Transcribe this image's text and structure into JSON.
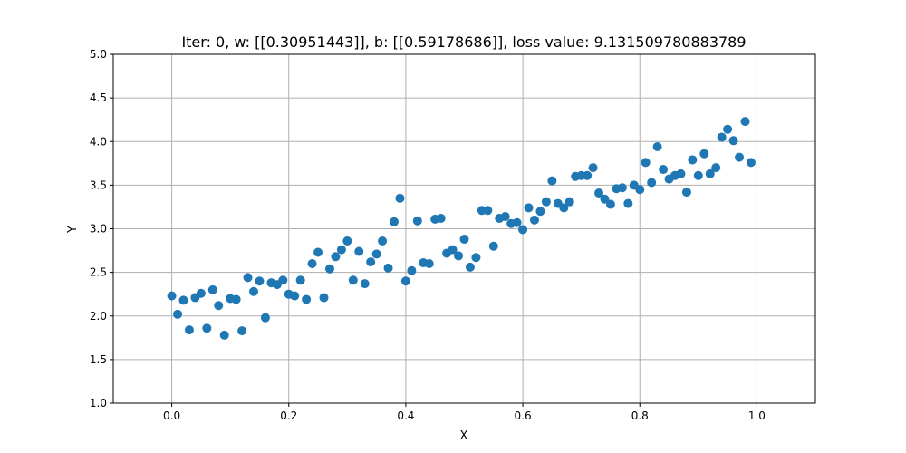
{
  "chart_data": {
    "type": "scatter",
    "title": "Iter: 0, w: [[0.30951443]], b: [[0.59178686]], loss value: 9.131509780883789",
    "xlabel": "X",
    "ylabel": "Y",
    "xlim": [
      -0.1,
      1.1
    ],
    "ylim": [
      1.0,
      5.0
    ],
    "xticks": [
      0.0,
      0.2,
      0.4,
      0.6,
      0.8,
      1.0
    ],
    "xtick_labels": [
      "0.0",
      "0.2",
      "0.4",
      "0.6",
      "0.8",
      "1.0"
    ],
    "yticks": [
      1.0,
      1.5,
      2.0,
      2.5,
      3.0,
      3.5,
      4.0,
      4.5,
      5.0
    ],
    "ytick_labels": [
      "1.0",
      "1.5",
      "2.0",
      "2.5",
      "3.0",
      "3.5",
      "4.0",
      "4.5",
      "5.0"
    ],
    "grid": true,
    "color": "#1f77b4",
    "x": [
      0.0,
      0.01,
      0.02,
      0.03,
      0.04,
      0.05,
      0.06,
      0.07,
      0.08,
      0.09,
      0.1,
      0.11,
      0.12,
      0.13,
      0.14,
      0.15,
      0.16,
      0.17,
      0.18,
      0.19,
      0.2,
      0.21,
      0.22,
      0.23,
      0.24,
      0.25,
      0.26,
      0.27,
      0.28,
      0.29,
      0.3,
      0.31,
      0.32,
      0.33,
      0.34,
      0.35,
      0.36,
      0.37,
      0.38,
      0.39,
      0.4,
      0.41,
      0.42,
      0.43,
      0.44,
      0.45,
      0.46,
      0.47,
      0.48,
      0.49,
      0.5,
      0.51,
      0.52,
      0.53,
      0.54,
      0.55,
      0.56,
      0.57,
      0.58,
      0.59,
      0.6,
      0.61,
      0.62,
      0.63,
      0.64,
      0.65,
      0.66,
      0.67,
      0.68,
      0.69,
      0.7,
      0.71,
      0.72,
      0.73,
      0.74,
      0.75,
      0.76,
      0.77,
      0.78,
      0.79,
      0.8,
      0.81,
      0.82,
      0.83,
      0.84,
      0.85,
      0.86,
      0.87,
      0.88,
      0.89,
      0.9,
      0.91,
      0.92,
      0.93,
      0.94,
      0.95,
      0.96,
      0.97,
      0.98,
      0.99
    ],
    "y": [
      2.23,
      2.02,
      2.18,
      1.84,
      2.21,
      2.26,
      1.86,
      2.3,
      2.12,
      1.78,
      2.2,
      2.19,
      1.83,
      2.44,
      2.28,
      2.4,
      1.98,
      2.38,
      2.36,
      2.41,
      2.25,
      2.23,
      2.41,
      2.19,
      2.6,
      2.73,
      2.21,
      2.54,
      2.68,
      2.76,
      2.86,
      2.41,
      2.74,
      2.37,
      2.62,
      2.71,
      2.86,
      2.55,
      3.08,
      3.35,
      2.4,
      2.52,
      3.09,
      2.61,
      2.6,
      3.11,
      3.12,
      2.72,
      2.76,
      2.69,
      2.88,
      2.56,
      2.67,
      3.21,
      3.21,
      2.8,
      3.12,
      3.14,
      3.06,
      3.07,
      2.99,
      3.24,
      3.1,
      3.2,
      3.31,
      3.55,
      3.29,
      3.24,
      3.31,
      3.6,
      3.61,
      3.61,
      3.7,
      3.41,
      3.34,
      3.28,
      3.46,
      3.47,
      3.29,
      3.5,
      3.45,
      3.76,
      3.53,
      3.94,
      3.68,
      3.57,
      3.61,
      3.63,
      3.42,
      3.79,
      3.61,
      3.86,
      3.63,
      3.7,
      4.05,
      4.14,
      4.01,
      3.82,
      4.23,
      3.76
    ]
  }
}
